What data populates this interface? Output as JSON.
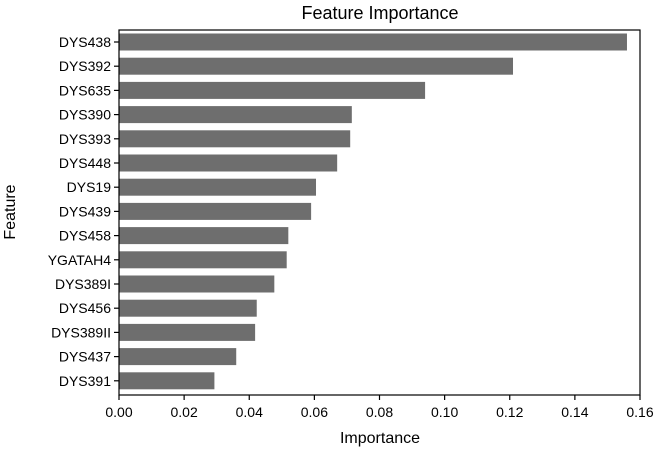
{
  "chart_data": {
    "type": "bar",
    "orientation": "horizontal",
    "title": "Feature Importance",
    "xlabel": "Importance",
    "ylabel": "Feature",
    "xlim": [
      0,
      0.16
    ],
    "xticks": [
      "0.00",
      "0.02",
      "0.04",
      "0.06",
      "0.08",
      "0.10",
      "0.12",
      "0.14",
      "0.16"
    ],
    "categories": [
      "DYS438",
      "DYS392",
      "DYS635",
      "DYS390",
      "DYS393",
      "DYS448",
      "DYS19",
      "DYS439",
      "DYS458",
      "YGATAH4",
      "DYS389I",
      "DYS456",
      "DYS389II",
      "DYS437",
      "DYS391"
    ],
    "values": [
      0.156,
      0.121,
      0.094,
      0.0715,
      0.071,
      0.067,
      0.0605,
      0.059,
      0.052,
      0.0515,
      0.0477,
      0.0423,
      0.0418,
      0.036,
      0.0293
    ],
    "grid": false,
    "legend": "none",
    "colors": {
      "bar": "#6e6e6e",
      "axis": "#000000"
    }
  }
}
